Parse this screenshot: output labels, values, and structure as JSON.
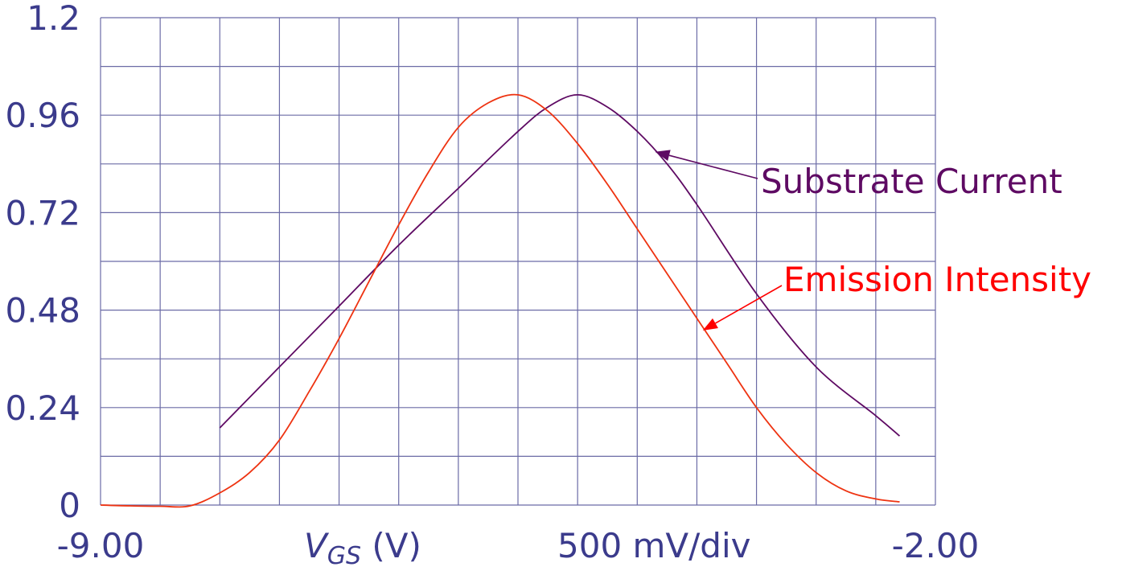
{
  "chart_data": {
    "type": "line",
    "xlabel_symbol": "V",
    "xlabel_subscript": "GS",
    "xlabel_unit": " (V)",
    "x_scale_label": "500 mV/div",
    "x_tick_labels": [
      "-9.00",
      "-2.00"
    ],
    "xlim": [
      -9.0,
      -2.0
    ],
    "ylim": [
      0,
      1.2
    ],
    "y_ticks": [
      0,
      0.24,
      0.48,
      0.72,
      0.96,
      1.2
    ],
    "y_tick_labels": [
      "0",
      "0.24",
      "0.48",
      "0.72",
      "0.96",
      "1.2"
    ],
    "grid": true,
    "series": [
      {
        "name": "Substrate Current",
        "color": "#5e0a63",
        "x": [
          -8.0,
          -7.5,
          -7.0,
          -6.5,
          -6.0,
          -5.5,
          -5.25,
          -5.0,
          -4.75,
          -4.5,
          -4.25,
          -4.0,
          -3.5,
          -3.0,
          -2.5,
          -2.3
        ],
        "y": [
          0.19,
          0.34,
          0.49,
          0.64,
          0.78,
          0.92,
          0.98,
          1.01,
          0.98,
          0.92,
          0.84,
          0.74,
          0.52,
          0.34,
          0.22,
          0.17
        ]
      },
      {
        "name": "Emission Intensity",
        "color": "#ee3311",
        "x": [
          -9.0,
          -8.75,
          -8.5,
          -8.25,
          -8.0,
          -7.75,
          -7.5,
          -7.25,
          -7.0,
          -6.75,
          -6.5,
          -6.25,
          -6.0,
          -5.75,
          -5.5,
          -5.25,
          -5.0,
          -4.75,
          -4.5,
          -4.25,
          -4.0,
          -3.75,
          -3.5,
          -3.25,
          -3.0,
          -2.75,
          -2.5,
          -2.3
        ],
        "y": [
          0.0,
          -0.002,
          -0.003,
          -0.002,
          0.03,
          0.08,
          0.16,
          0.28,
          0.41,
          0.55,
          0.69,
          0.82,
          0.93,
          0.99,
          1.01,
          0.97,
          0.89,
          0.79,
          0.68,
          0.57,
          0.46,
          0.35,
          0.24,
          0.15,
          0.08,
          0.035,
          0.015,
          0.008
        ]
      }
    ],
    "annotations": [
      {
        "text": "Substrate Current",
        "color": "#5e0a63",
        "arrow_to": {
          "x": -4.35,
          "y": 0.87
        }
      },
      {
        "text": "Emission Intensity",
        "color": "#ff0000",
        "arrow_to": {
          "x": -3.95,
          "y": 0.43
        }
      }
    ]
  }
}
